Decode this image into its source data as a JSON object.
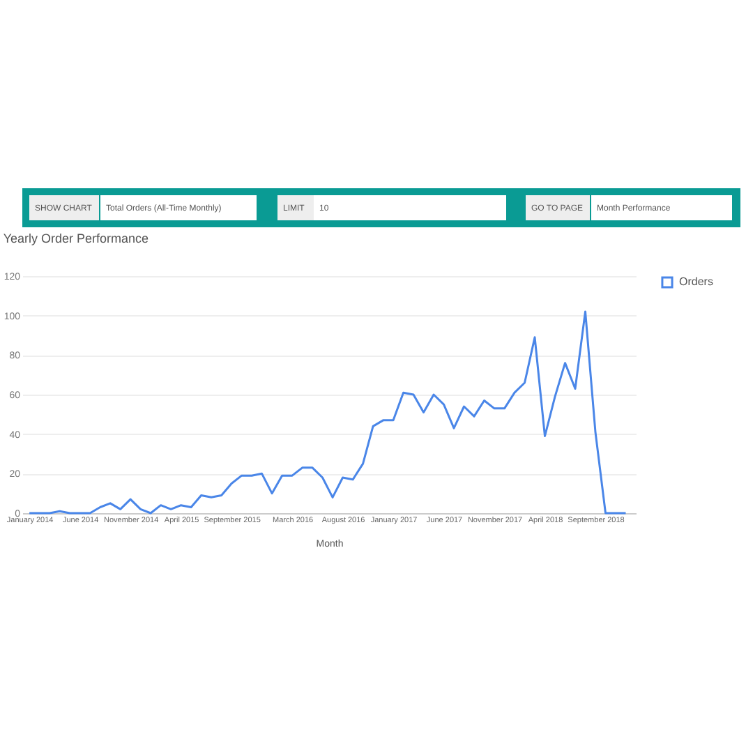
{
  "chart_data": {
    "type": "line",
    "title": "Yearly Order Performance",
    "xlabel": "Month",
    "categories": [
      "January 2014",
      null,
      null,
      null,
      null,
      "June 2014",
      null,
      null,
      null,
      null,
      "November 2014",
      null,
      null,
      null,
      null,
      "April 2015",
      null,
      null,
      null,
      null,
      "September 2015",
      null,
      null,
      null,
      null,
      null,
      "March 2016",
      null,
      null,
      null,
      null,
      "August 2016",
      null,
      null,
      null,
      null,
      "January 2017",
      null,
      null,
      null,
      null,
      "June 2017",
      null,
      null,
      null,
      null,
      "November 2017",
      null,
      null,
      null,
      null,
      "April 2018",
      null,
      null,
      null,
      null,
      "September 2018",
      null,
      null,
      null
    ],
    "series": [
      {
        "name": "Orders",
        "color": "#4a86e8",
        "values": [
          0,
          0,
          0,
          1,
          0,
          0,
          0,
          3,
          5,
          2,
          7,
          2,
          0,
          4,
          2,
          4,
          3,
          9,
          8,
          9,
          15,
          19,
          19,
          20,
          10,
          19,
          19,
          23,
          23,
          18,
          8,
          18,
          17,
          25,
          44,
          47,
          47,
          61,
          60,
          51,
          60,
          55,
          43,
          54,
          49,
          57,
          53,
          53,
          61,
          66,
          89,
          39,
          59,
          76,
          63,
          102,
          41,
          0,
          0,
          0
        ]
      }
    ],
    "ylim": [
      0,
      120
    ],
    "yticks": [
      0,
      20,
      40,
      60,
      80,
      100,
      120
    ],
    "grid": "y",
    "legend": "top right",
    "annotations": [
      "SHOW CHART",
      "Total Orders (All-Time Monthly)",
      "LIMIT",
      "10",
      "GO TO PAGE",
      "Month Performance"
    ]
  }
}
